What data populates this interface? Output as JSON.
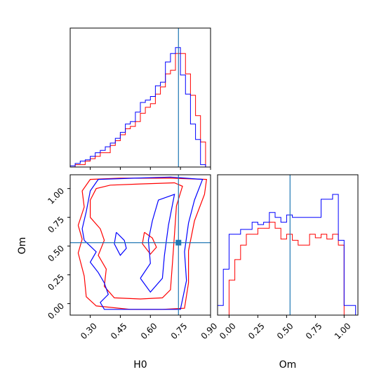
{
  "chart_data": {
    "type": "corner",
    "parameters": [
      "H0",
      "Om"
    ],
    "truth": {
      "H0": 0.74,
      "Om": 0.53
    },
    "colors": {
      "red": "#ff0000",
      "blue": "#0000ff",
      "truth": "#1f77b4"
    },
    "axes": {
      "H0": {
        "label": "H0",
        "range": [
          0.2,
          0.9
        ],
        "ticks": [
          "0.30",
          "0.45",
          "0.60",
          "0.75",
          "0.90"
        ],
        "tick_values": [
          0.3,
          0.45,
          0.6,
          0.75,
          0.9
        ]
      },
      "Om": {
        "label": "Om",
        "range": [
          -0.1,
          1.12
        ],
        "ticks": [
          "0.00",
          "0.25",
          "0.50",
          "0.75",
          "1.00"
        ],
        "tick_values": [
          0.0,
          0.25,
          0.5,
          0.75,
          1.0
        ]
      }
    },
    "hist_H0": {
      "bin_edges": [
        0.2,
        0.225,
        0.25,
        0.275,
        0.3,
        0.325,
        0.35,
        0.375,
        0.4,
        0.425,
        0.45,
        0.475,
        0.5,
        0.525,
        0.55,
        0.575,
        0.6,
        0.625,
        0.65,
        0.675,
        0.7,
        0.725,
        0.75,
        0.775,
        0.8,
        0.825,
        0.85,
        0.875,
        0.9
      ],
      "series": [
        {
          "color": "red",
          "values": [
            0.0,
            0.02,
            0.02,
            0.05,
            0.07,
            0.09,
            0.12,
            0.12,
            0.18,
            0.22,
            0.27,
            0.32,
            0.34,
            0.38,
            0.45,
            0.5,
            0.53,
            0.61,
            0.67,
            0.78,
            0.81,
            0.95,
            0.95,
            0.78,
            0.6,
            0.43,
            0.21,
            0.0
          ]
        },
        {
          "color": "blue",
          "values": [
            0.01,
            0.03,
            0.05,
            0.06,
            0.09,
            0.12,
            0.14,
            0.17,
            0.2,
            0.24,
            0.29,
            0.36,
            0.38,
            0.46,
            0.54,
            0.56,
            0.59,
            0.68,
            0.71,
            0.88,
            0.95,
            1.0,
            0.77,
            0.61,
            0.36,
            0.23,
            0.02,
            0.0
          ]
        }
      ]
    },
    "hist_Om": {
      "bin_edges": [
        -0.1,
        -0.05,
        0.0,
        0.05,
        0.1,
        0.15,
        0.2,
        0.25,
        0.3,
        0.35,
        0.4,
        0.45,
        0.5,
        0.55,
        0.6,
        0.65,
        0.7,
        0.75,
        0.8,
        0.85,
        0.9,
        0.95,
        1.0,
        1.05,
        1.1
      ],
      "series": [
        {
          "color": "red",
          "values": [
            0.0,
            0.0,
            0.29,
            0.46,
            0.58,
            0.67,
            0.67,
            0.72,
            0.72,
            0.77,
            0.72,
            0.63,
            0.67,
            0.62,
            0.58,
            0.58,
            0.67,
            0.64,
            0.67,
            0.63,
            0.67,
            0.58,
            0.0,
            0.0
          ]
        },
        {
          "color": "blue",
          "values": [
            0.08,
            0.38,
            0.67,
            0.67,
            0.71,
            0.71,
            0.77,
            0.75,
            0.77,
            0.85,
            0.81,
            0.77,
            0.83,
            0.81,
            0.81,
            0.81,
            0.81,
            0.81,
            0.96,
            0.96,
            1.0,
            0.62,
            0.08,
            0.08
          ]
        }
      ]
    },
    "contours_2d": [
      {
        "color": "red",
        "paths": [
          [
            [
              0.3,
              0.75
            ],
            [
              0.35,
              0.65
            ],
            [
              0.37,
              0.55
            ],
            [
              0.34,
              0.42
            ],
            [
              0.38,
              0.3
            ],
            [
              0.37,
              0.15
            ],
            [
              0.42,
              0.05
            ],
            [
              0.55,
              0.04
            ],
            [
              0.66,
              0.05
            ],
            [
              0.7,
              0.12
            ],
            [
              0.71,
              0.35
            ],
            [
              0.72,
              0.6
            ],
            [
              0.73,
              0.85
            ],
            [
              0.76,
              1.02
            ],
            [
              0.72,
              1.05
            ],
            [
              0.55,
              1.04
            ],
            [
              0.4,
              1.03
            ],
            [
              0.33,
              1.0
            ],
            [
              0.3,
              0.9
            ],
            [
              0.3,
              0.75
            ]
          ],
          [
            [
              0.24,
              0.68
            ],
            [
              0.26,
              0.56
            ],
            [
              0.24,
              0.44
            ],
            [
              0.27,
              0.24
            ],
            [
              0.28,
              0.06
            ],
            [
              0.33,
              -0.02
            ],
            [
              0.5,
              -0.05
            ],
            [
              0.66,
              -0.05
            ],
            [
              0.77,
              -0.04
            ],
            [
              0.79,
              0.18
            ],
            [
              0.79,
              0.46
            ],
            [
              0.82,
              0.72
            ],
            [
              0.87,
              0.95
            ],
            [
              0.88,
              1.08
            ],
            [
              0.7,
              1.09
            ],
            [
              0.45,
              1.09
            ],
            [
              0.3,
              1.08
            ],
            [
              0.26,
              0.98
            ],
            [
              0.27,
              0.84
            ],
            [
              0.24,
              0.68
            ]
          ],
          [
            [
              0.57,
              0.62
            ],
            [
              0.61,
              0.57
            ],
            [
              0.63,
              0.49
            ],
            [
              0.6,
              0.43
            ],
            [
              0.56,
              0.52
            ],
            [
              0.57,
              0.62
            ]
          ]
        ]
      },
      {
        "color": "blue",
        "paths": [
          [
            [
              0.27,
              0.55
            ],
            [
              0.33,
              0.45
            ],
            [
              0.3,
              0.36
            ],
            [
              0.34,
              0.27
            ],
            [
              0.37,
              0.18
            ],
            [
              0.39,
              0.08
            ],
            [
              0.35,
              0.01
            ],
            [
              0.37,
              -0.05
            ],
            [
              0.48,
              -0.05
            ],
            [
              0.62,
              -0.05
            ],
            [
              0.75,
              -0.05
            ],
            [
              0.78,
              0.2
            ],
            [
              0.77,
              0.45
            ],
            [
              0.79,
              0.7
            ],
            [
              0.82,
              0.9
            ],
            [
              0.86,
              1.08
            ],
            [
              0.7,
              1.1
            ],
            [
              0.52,
              1.09
            ],
            [
              0.34,
              1.08
            ],
            [
              0.3,
              0.98
            ],
            [
              0.28,
              0.8
            ],
            [
              0.26,
              0.65
            ],
            [
              0.27,
              0.55
            ]
          ],
          [
            [
              0.55,
              0.22
            ],
            [
              0.6,
              0.35
            ],
            [
              0.59,
              0.55
            ],
            [
              0.61,
              0.72
            ],
            [
              0.64,
              0.9
            ],
            [
              0.72,
              0.95
            ],
            [
              0.69,
              0.68
            ],
            [
              0.67,
              0.42
            ],
            [
              0.66,
              0.22
            ],
            [
              0.6,
              0.1
            ],
            [
              0.55,
              0.22
            ]
          ],
          [
            [
              0.43,
              0.62
            ],
            [
              0.47,
              0.55
            ],
            [
              0.48,
              0.48
            ],
            [
              0.45,
              0.42
            ],
            [
              0.42,
              0.52
            ],
            [
              0.43,
              0.62
            ]
          ]
        ]
      }
    ]
  }
}
